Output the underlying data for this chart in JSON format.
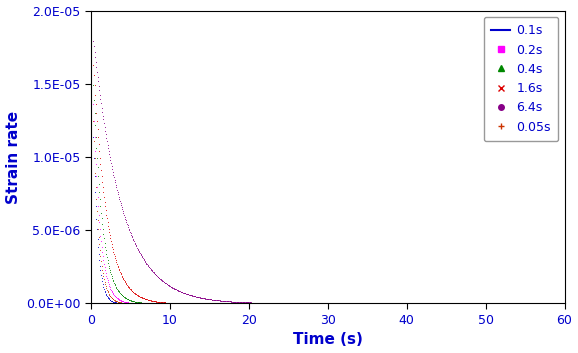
{
  "title": "",
  "xlabel": "Time (s)",
  "ylabel": "Strain rate",
  "xlim": [
    0,
    60
  ],
  "ylim": [
    0,
    2e-05
  ],
  "yticks": [
    0.0,
    5e-06,
    1e-05,
    1.5e-05,
    2e-05
  ],
  "xticks": [
    0,
    10,
    20,
    30,
    40,
    50,
    60
  ],
  "series": [
    {
      "label": "0.1s",
      "color": "#0000cc",
      "peak": 1.95e-05,
      "decay": 1.8,
      "marker": "-",
      "ms": 1.5
    },
    {
      "label": "0.2s",
      "color": "#ff00ff",
      "peak": 1.95e-05,
      "decay": 1.2,
      "marker": "s",
      "ms": 1.5
    },
    {
      "label": "0.4s",
      "color": "#008800",
      "peak": 1.95e-05,
      "decay": 0.9,
      "marker": "^",
      "ms": 1.5
    },
    {
      "label": "1.6s",
      "color": "#dd0000",
      "peak": 1.95e-05,
      "decay": 0.6,
      "marker": "x",
      "ms": 1.5
    },
    {
      "label": "6.4s",
      "color": "#880088",
      "peak": 1.95e-05,
      "decay": 0.28,
      "marker": "o",
      "ms": 1.5
    },
    {
      "label": "0.05s",
      "color": "#cc3300",
      "peak": 1.95e-05,
      "decay": 1.5,
      "marker": "+",
      "ms": 1.5
    }
  ],
  "tick_color": "#0000cc",
  "label_color": "#0000cc",
  "background_color": "#ffffff"
}
